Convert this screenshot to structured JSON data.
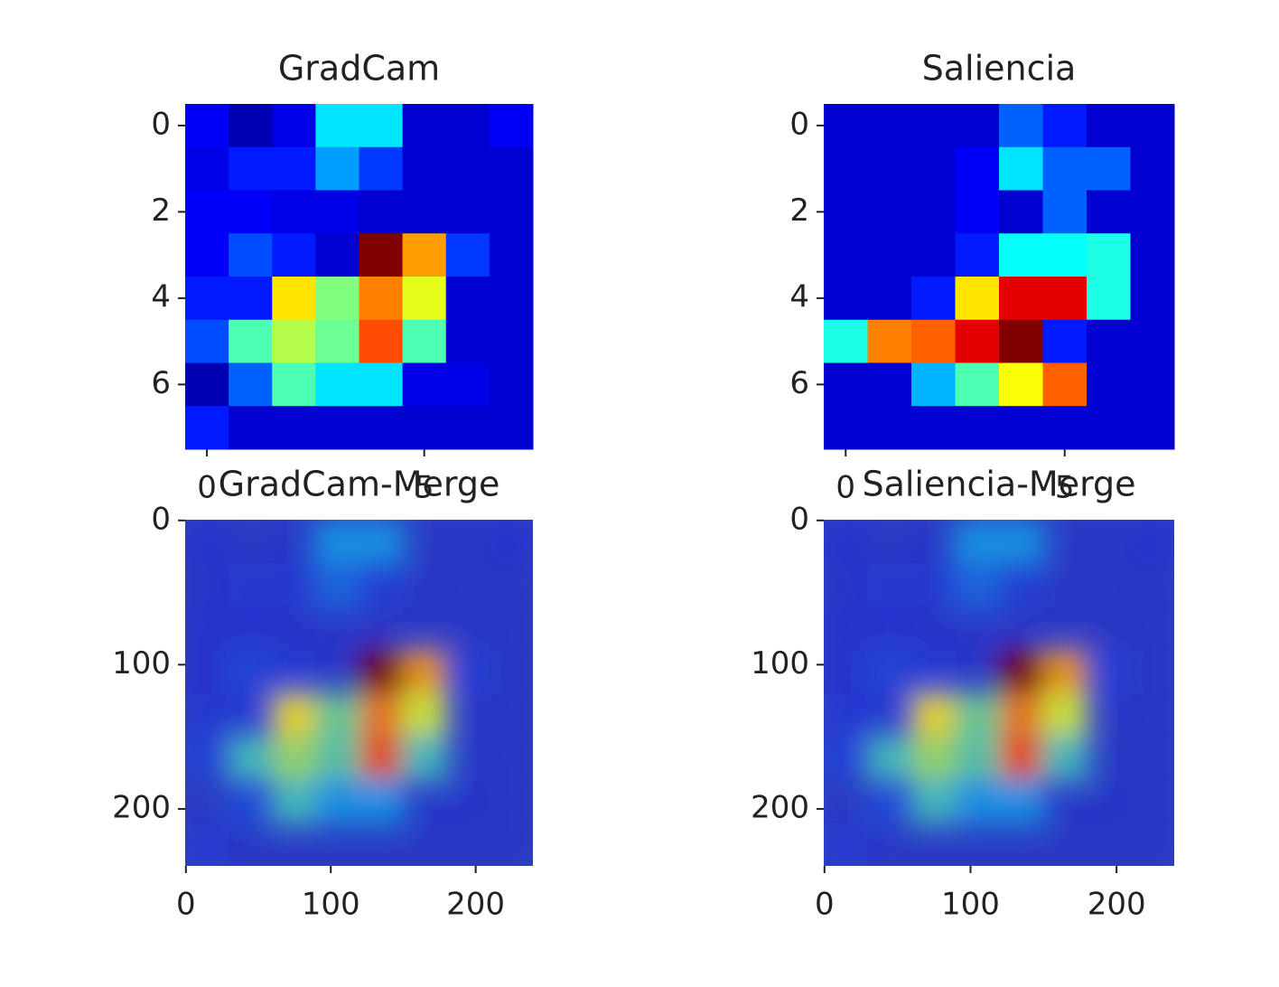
{
  "chart_data": [
    {
      "type": "heatmap",
      "title": "GradCam",
      "xlim": [
        -0.5,
        7.5
      ],
      "ylim": [
        7.5,
        -0.5
      ],
      "xticks": [
        0,
        5
      ],
      "yticks": [
        0,
        2,
        4,
        6
      ],
      "colormap": "jet",
      "values": [
        [
          0.12,
          0.05,
          0.1,
          0.35,
          0.35,
          0.08,
          0.08,
          0.12
        ],
        [
          0.1,
          0.15,
          0.15,
          0.28,
          0.18,
          0.08,
          0.08,
          0.08
        ],
        [
          0.12,
          0.12,
          0.1,
          0.1,
          0.08,
          0.08,
          0.08,
          0.08
        ],
        [
          0.12,
          0.2,
          0.15,
          0.08,
          1.0,
          0.72,
          0.18,
          0.08
        ],
        [
          0.15,
          0.15,
          0.65,
          0.5,
          0.75,
          0.6,
          0.08,
          0.08
        ],
        [
          0.2,
          0.45,
          0.55,
          0.48,
          0.8,
          0.45,
          0.08,
          0.08
        ],
        [
          0.05,
          0.22,
          0.45,
          0.35,
          0.35,
          0.1,
          0.1,
          0.08
        ],
        [
          0.15,
          0.08,
          0.08,
          0.08,
          0.08,
          0.08,
          0.08,
          0.08
        ]
      ]
    },
    {
      "type": "heatmap",
      "title": "Saliencia",
      "xlim": [
        -0.5,
        7.5
      ],
      "ylim": [
        7.5,
        -0.5
      ],
      "xticks": [
        0,
        5
      ],
      "yticks": [
        0,
        2,
        4,
        6
      ],
      "colormap": "jet",
      "values": [
        [
          0.08,
          0.08,
          0.08,
          0.08,
          0.22,
          0.15,
          0.08,
          0.08
        ],
        [
          0.08,
          0.08,
          0.08,
          0.12,
          0.35,
          0.22,
          0.22,
          0.08
        ],
        [
          0.08,
          0.08,
          0.08,
          0.12,
          0.08,
          0.22,
          0.08,
          0.08
        ],
        [
          0.08,
          0.08,
          0.08,
          0.15,
          0.38,
          0.38,
          0.4,
          0.08
        ],
        [
          0.08,
          0.08,
          0.15,
          0.65,
          0.9,
          0.9,
          0.4,
          0.08
        ],
        [
          0.4,
          0.75,
          0.78,
          0.9,
          1.0,
          0.15,
          0.08,
          0.08
        ],
        [
          0.08,
          0.08,
          0.3,
          0.45,
          0.62,
          0.78,
          0.08,
          0.08
        ],
        [
          0.08,
          0.08,
          0.08,
          0.08,
          0.08,
          0.08,
          0.08,
          0.08
        ]
      ]
    },
    {
      "type": "image",
      "title": "GradCam-Merge",
      "xlim": [
        -0.5,
        239.5
      ],
      "ylim": [
        239.5,
        -0.5
      ],
      "xticks": [
        0,
        100,
        200
      ],
      "yticks": [
        0,
        100,
        200
      ]
    },
    {
      "type": "image",
      "title": "Saliencia-Merge",
      "xlim": [
        -0.5,
        239.5
      ],
      "ylim": [
        239.5,
        -0.5
      ],
      "xticks": [
        0,
        100,
        200
      ],
      "yticks": [
        0,
        100,
        200
      ]
    }
  ]
}
